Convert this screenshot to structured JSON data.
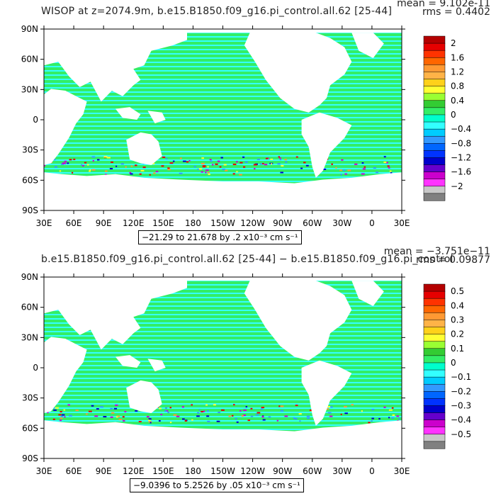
{
  "panels": [
    {
      "title": "WISOP at z=2074.9m, b.e15.B1850.f09_g16.pi_control.all.62 [25-44]",
      "mean": "mean = 9.102e-11",
      "rms": "rms = 0.4402",
      "range_text": "−2 1.29 to 21.678 by .2 x10⁻³ cm s⁻¹",
      "colorbar_labels": [
        "2",
        "1.6",
        "1.2",
        "0.8",
        "0.4",
        "0",
        "−0.4",
        "−0.8",
        "−1.2",
        "−1.6",
        "−2"
      ]
    },
    {
      "title": "b.e15.B1850.f09_g16.pi_control.all.62 [25-44] − b.e15.B1850.f09_g16.pi_control",
      "mean": "mean = −3.751e−11",
      "rms": "rms = 0.09877",
      "range_text": "−9.0396 to 5.2526 by .05 x10⁻³ cm s⁻¹",
      "colorbar_labels": [
        "0.5",
        "0.4",
        "0.3",
        "0.2",
        "0.1",
        "0",
        "−0.1",
        "−0.2",
        "−0.3",
        "−0.4",
        "−0.5"
      ]
    }
  ],
  "axes": {
    "lat_ticks": [
      "90N",
      "60N",
      "30N",
      "0",
      "30S",
      "60S",
      "90S"
    ],
    "lon_ticks": [
      "30E",
      "60E",
      "90E",
      "120E",
      "150E",
      "180",
      "150W",
      "120W",
      "90W",
      "60W",
      "30W",
      "0",
      "30E"
    ]
  },
  "colors": {
    "colorbar": [
      "#b40000",
      "#e60000",
      "#ff3300",
      "#ff6600",
      "#ff9933",
      "#ffb347",
      "#ffd11a",
      "#ffff33",
      "#99ff33",
      "#33cc33",
      "#33ee66",
      "#00ffcc",
      "#33ffff",
      "#00ccff",
      "#3399ff",
      "#0066ff",
      "#0033ff",
      "#0000cc",
      "#6600cc",
      "#cc00cc",
      "#ff33ff",
      "#c8c8c8",
      "#808080"
    ],
    "ocean_main": "#33ee66",
    "ocean_secondary": "#33ffff",
    "land": "#ffffff"
  }
}
